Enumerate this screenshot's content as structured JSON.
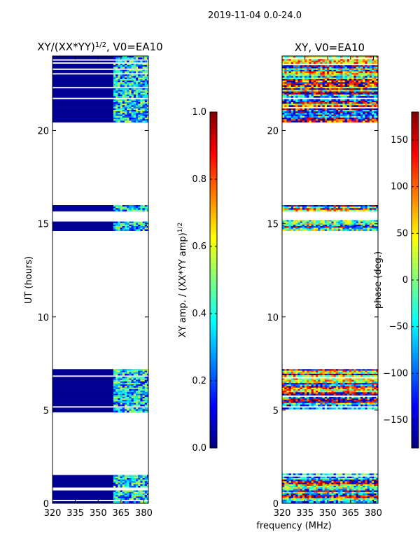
{
  "figure": {
    "suptitle": "2019-11-04 0.0-24.0",
    "xlabel": "frequency (MHz)"
  },
  "colors": {
    "jet": [
      "#00007f",
      "#0000ff",
      "#007fff",
      "#00ffff",
      "#7fff7f",
      "#ffff00",
      "#ff7f00",
      "#ff0000",
      "#7f0000"
    ],
    "masked": "#ffffff",
    "axis": "#000000"
  },
  "chart_data": [
    {
      "type": "heatmap",
      "name": "amplitude-ratio",
      "title_main": "XY/(XX*YY)",
      "title_exp": "1/2",
      "title_tail": ", V0=EA10",
      "xlabel": "",
      "ylabel": "UT (hours)",
      "xlim": [
        320,
        383
      ],
      "ylim": [
        0,
        24
      ],
      "xticks": [
        320,
        335,
        350,
        365,
        380
      ],
      "yticks": [
        0,
        5,
        10,
        15,
        20
      ],
      "active_band": [
        360,
        383
      ],
      "time_blocks": [
        {
          "start": 0.1,
          "end": 1.6
        },
        {
          "start": 4.95,
          "end": 7.2
        },
        {
          "start": 14.7,
          "end": 15.2
        },
        {
          "start": 15.7,
          "end": 16.0
        },
        {
          "start": 20.5,
          "end": 24.0
        }
      ],
      "baseline_level": 0.02,
      "band_level_range": [
        0.1,
        0.6
      ],
      "colorbar": {
        "label_main": "XY amp. / (XX*YY amp)",
        "label_exp": "1/2",
        "vmin": 0.0,
        "vmax": 1.0,
        "ticks": [
          "0.0",
          "0.2",
          "0.4",
          "0.6",
          "0.8",
          "1.0"
        ]
      }
    },
    {
      "type": "heatmap",
      "name": "phase",
      "title_main": "XY, V0=EA10",
      "xlabel": "frequency (MHz)",
      "ylabel": "",
      "xlim": [
        320,
        383
      ],
      "ylim": [
        0,
        24
      ],
      "xticks": [
        320,
        335,
        350,
        365,
        380
      ],
      "yticks": [
        0,
        5,
        10,
        15,
        20
      ],
      "time_blocks": [
        {
          "start": 0.1,
          "end": 1.6
        },
        {
          "start": 4.95,
          "end": 7.2
        },
        {
          "start": 14.7,
          "end": 15.2
        },
        {
          "start": 15.7,
          "end": 16.0
        },
        {
          "start": 20.5,
          "end": 24.0
        }
      ],
      "colorbar": {
        "label_main": "phase (deg.)",
        "vmin": -180,
        "vmax": 180,
        "ticks": [
          "−150",
          "−100",
          "−50",
          "0",
          "50",
          "100",
          "150"
        ]
      }
    }
  ]
}
